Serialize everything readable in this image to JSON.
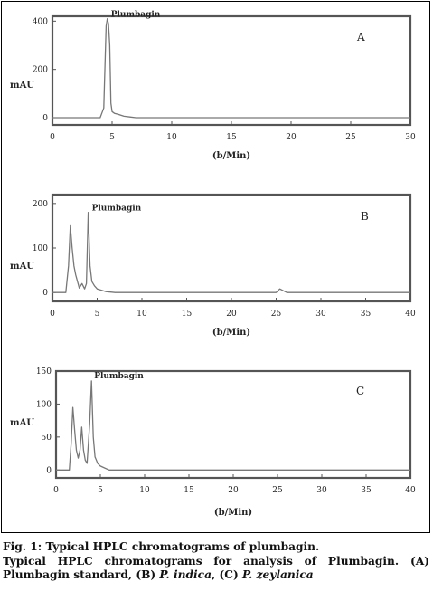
{
  "figure": {
    "caption_line1": "Fig. 1: Typical HPLC chromatograms of plumbagin.",
    "caption_line2": "Typical HPLC chromatograms for analysis of Plumbagin. (A)",
    "caption_line3_a": "Plumbagin standard, (B) ",
    "caption_line3_b": "P. indica",
    "caption_line3_c": ", (C) ",
    "caption_line3_d": "P. zeylanica"
  },
  "chart_data": [
    {
      "type": "line",
      "panel_label": "A",
      "ylabel": "mAU",
      "xlabel": "(b/Min)",
      "peak_label": "Plumbagin",
      "xlim": [
        0,
        30
      ],
      "ylim": [
        -30,
        420
      ],
      "x_ticks": [
        0,
        5,
        10,
        15,
        20,
        25,
        30
      ],
      "y_ticks": [
        0,
        200,
        400
      ],
      "series": [
        {
          "x": [
            0,
            4.0,
            4.3,
            4.5,
            4.6,
            4.7,
            4.8,
            4.9,
            5.0,
            5.2,
            5.5,
            6.0,
            6.5,
            7.0,
            30
          ],
          "y": [
            0,
            0,
            40,
            380,
            410,
            390,
            300,
            60,
            25,
            18,
            14,
            6,
            3,
            0,
            0
          ]
        }
      ]
    },
    {
      "type": "line",
      "panel_label": "B",
      "ylabel": "mAU",
      "xlabel": "(b/Min)",
      "peak_label": "Plumbagin",
      "xlim": [
        0,
        40
      ],
      "ylim": [
        -20,
        220
      ],
      "x_ticks": [
        0,
        5,
        10,
        15,
        20,
        25,
        30,
        35,
        40
      ],
      "y_ticks": [
        0,
        100,
        200
      ],
      "series": [
        {
          "x": [
            0,
            1.5,
            1.8,
            2.0,
            2.2,
            2.4,
            2.6,
            2.8,
            3.0,
            3.3,
            3.6,
            3.8,
            4.0,
            4.2,
            4.4,
            4.7,
            5.0,
            5.5,
            6.0,
            7.0,
            25.0,
            25.4,
            25.8,
            26.2,
            40
          ],
          "y": [
            0,
            0,
            60,
            150,
            100,
            60,
            40,
            25,
            10,
            20,
            8,
            20,
            180,
            60,
            25,
            15,
            8,
            5,
            2,
            0,
            0,
            8,
            4,
            0,
            0
          ]
        }
      ]
    },
    {
      "type": "line",
      "panel_label": "C",
      "ylabel": "mAU",
      "xlabel": "(b/Min)",
      "peak_label": "Plumbagin",
      "xlim": [
        0,
        40
      ],
      "ylim": [
        -12,
        150
      ],
      "x_ticks": [
        0,
        5,
        10,
        15,
        20,
        25,
        30,
        35,
        40
      ],
      "y_ticks": [
        0,
        50,
        100,
        150
      ],
      "series": [
        {
          "x": [
            0,
            1.5,
            1.7,
            1.9,
            2.1,
            2.3,
            2.5,
            2.7,
            2.9,
            3.1,
            3.3,
            3.5,
            3.8,
            4.0,
            4.2,
            4.4,
            4.7,
            5.0,
            5.5,
            6.0,
            40
          ],
          "y": [
            0,
            0,
            40,
            95,
            60,
            30,
            18,
            30,
            65,
            30,
            15,
            10,
            70,
            135,
            50,
            20,
            10,
            6,
            3,
            0,
            0
          ]
        }
      ]
    }
  ]
}
